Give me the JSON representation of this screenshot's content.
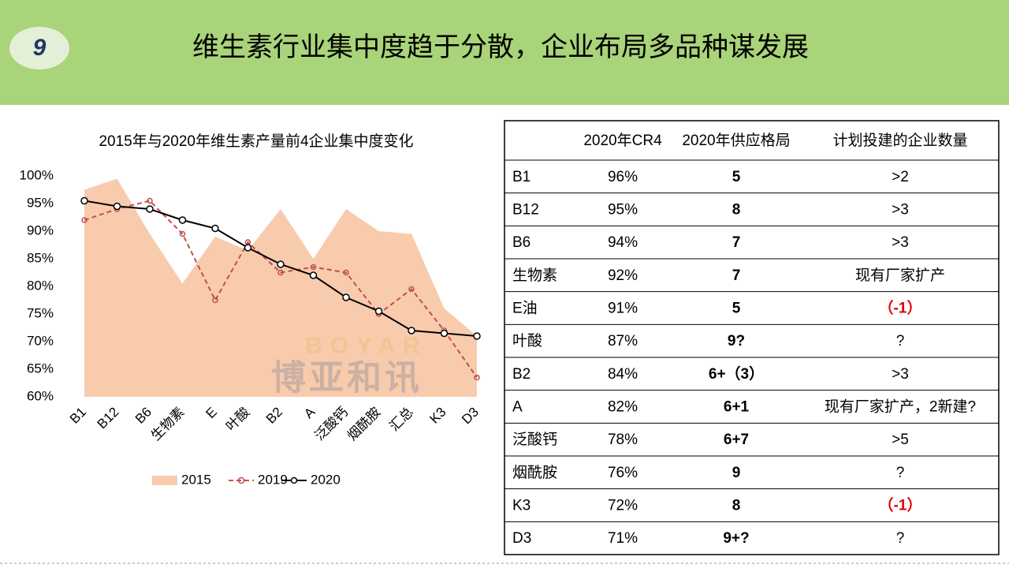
{
  "header": {
    "number": "9",
    "title": "维生素行业集中度趋于分散，企业布局多品种谋发展"
  },
  "chart_data": {
    "type": "line",
    "title": "2015年与2020年维生素产量前4企业集中度变化",
    "categories": [
      "B1",
      "B12",
      "B6",
      "生物素",
      "E",
      "叶酸",
      "B2",
      "A",
      "泛酸钙",
      "烟酰胺",
      "汇总",
      "K3",
      "D3"
    ],
    "series": [
      {
        "name": "2015",
        "kind": "area",
        "color": "#f8cbad",
        "values": [
          97.5,
          99.5,
          89.5,
          80.5,
          89,
          86.5,
          94,
          85,
          94,
          90,
          89.5,
          76,
          71
        ]
      },
      {
        "name": "2019",
        "kind": "line",
        "dashed": true,
        "color": "#c0504d",
        "values": [
          92,
          94,
          95.5,
          89.5,
          77.5,
          88,
          82.5,
          83.5,
          82.5,
          75,
          79.5,
          72,
          63.5
        ]
      },
      {
        "name": "2020",
        "kind": "line",
        "dashed": false,
        "color": "#000000",
        "values": [
          95.5,
          94.5,
          94,
          92,
          90.5,
          87,
          84,
          82,
          78,
          75.5,
          72,
          71.5,
          71
        ]
      }
    ],
    "ylim": [
      60,
      100
    ],
    "yticks": [
      {
        "value": 60,
        "label": "60%"
      },
      {
        "value": 65,
        "label": "65%"
      },
      {
        "value": 70,
        "label": "70%"
      },
      {
        "value": 75,
        "label": "75%"
      },
      {
        "value": 80,
        "label": "80%"
      },
      {
        "value": 85,
        "label": "85%"
      },
      {
        "value": 90,
        "label": "90%"
      },
      {
        "value": 95,
        "label": "95%"
      },
      {
        "value": 100,
        "label": "100%"
      }
    ],
    "legend": "bottom",
    "watermark": {
      "latin": "BOYAR",
      "chinese": "博亚和讯"
    }
  },
  "table": {
    "header": [
      "2020年CR4",
      "2020年供应格局",
      "计划投建的企业数量"
    ],
    "rows": [
      [
        "B1",
        "96%",
        "5",
        ">2"
      ],
      [
        "B12",
        "95%",
        "8",
        ">3"
      ],
      [
        "B6",
        "94%",
        "7",
        ">3"
      ],
      [
        "生物素",
        "92%",
        "7",
        "现有厂家扩产"
      ],
      [
        "E油",
        "91%",
        "5",
        "（-1）"
      ],
      [
        "叶酸",
        "87%",
        "9?",
        "?"
      ],
      [
        "B2",
        "84%",
        "6+（3）",
        ">3"
      ],
      [
        "A",
        "82%",
        "6+1",
        "现有厂家扩产，2新建?"
      ],
      [
        "泛酸钙",
        "78%",
        "6+7",
        ">5"
      ],
      [
        "烟酰胺",
        "76%",
        "9",
        "?"
      ],
      [
        "K3",
        "72%",
        "8",
        "（-1）"
      ],
      [
        "D3",
        "71%",
        "9+?",
        "?"
      ]
    ],
    "highlight": {
      "color": "#e00000",
      "cells": [
        [
          4,
          3
        ],
        [
          10,
          3
        ]
      ]
    }
  }
}
